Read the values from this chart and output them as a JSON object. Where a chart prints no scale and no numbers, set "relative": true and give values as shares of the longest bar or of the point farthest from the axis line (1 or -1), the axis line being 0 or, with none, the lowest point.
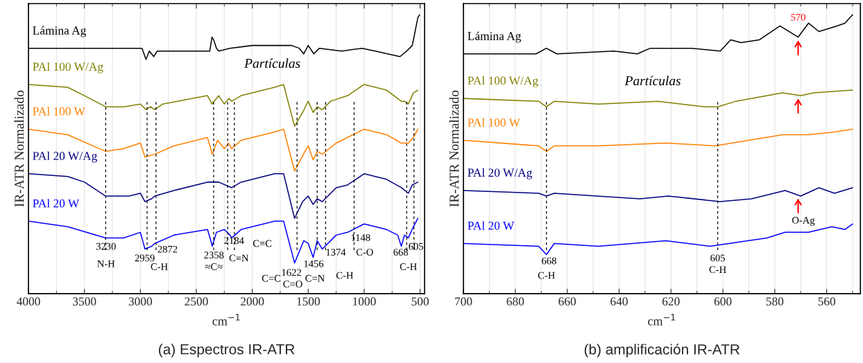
{
  "chart_data": [
    {
      "type": "line",
      "relative": true,
      "title": "(a) Espectros IR-ATR",
      "xlabel": "cm$^{−1}$",
      "ylabel": "IR-ATR Normalizado",
      "xlim": [
        4000,
        460
      ],
      "xticks": [
        4000,
        3500,
        3000,
        2500,
        2000,
        1500,
        1000,
        500
      ],
      "grid": "x",
      "series": [
        {
          "name": "Lámina Ag",
          "color": "#000000",
          "x": [
            4000,
            3700,
            3400,
            3000,
            2985,
            2950,
            2920,
            2880,
            2850,
            2500,
            2380,
            2360,
            2345,
            2320,
            2300,
            2200,
            2000,
            1800,
            1650,
            1580,
            1540,
            1500,
            1450,
            1400,
            1200,
            1020,
            900,
            680,
            620,
            570,
            550,
            530,
            520,
            505
          ],
          "values": [
            0.88,
            0.88,
            0.88,
            0.88,
            0.88,
            0.84,
            0.87,
            0.85,
            0.87,
            0.87,
            0.87,
            0.92,
            0.91,
            0.88,
            0.87,
            0.88,
            0.89,
            0.89,
            0.89,
            0.88,
            0.86,
            0.89,
            0.86,
            0.88,
            0.87,
            0.88,
            0.87,
            0.85,
            0.87,
            0.89,
            0.93,
            0.97,
            0.99,
            1.0
          ]
        },
        {
          "name": "PAl 100 W/Ag",
          "color": "#808000",
          "x": [
            4000,
            3650,
            3500,
            3310,
            3150,
            3000,
            2950,
            2910,
            2872,
            2800,
            2400,
            2360,
            2300,
            2250,
            2210,
            2184,
            2100,
            1800,
            1720,
            1622,
            1550,
            1500,
            1456,
            1420,
            1374,
            1300,
            1148,
            1000,
            800,
            668,
            640,
            605,
            560,
            520
          ],
          "values": [
            0.75,
            0.74,
            0.71,
            0.67,
            0.67,
            0.68,
            0.66,
            0.67,
            0.66,
            0.68,
            0.71,
            0.68,
            0.71,
            0.68,
            0.7,
            0.69,
            0.71,
            0.74,
            0.75,
            0.6,
            0.65,
            0.69,
            0.65,
            0.67,
            0.66,
            0.69,
            0.71,
            0.75,
            0.73,
            0.69,
            0.69,
            0.68,
            0.72,
            0.73
          ]
        },
        {
          "name": "PAl 100 W",
          "color": "#ff8000",
          "x": [
            4000,
            3650,
            3310,
            3150,
            3000,
            2959,
            2872,
            2700,
            2400,
            2358,
            2310,
            2250,
            2210,
            2184,
            2100,
            1800,
            1720,
            1622,
            1530,
            1500,
            1456,
            1420,
            1374,
            1250,
            1000,
            800,
            668,
            605,
            560,
            520
          ],
          "values": [
            0.59,
            0.57,
            0.51,
            0.52,
            0.54,
            0.49,
            0.5,
            0.53,
            0.56,
            0.5,
            0.55,
            0.52,
            0.54,
            0.52,
            0.55,
            0.58,
            0.59,
            0.44,
            0.51,
            0.53,
            0.48,
            0.51,
            0.5,
            0.54,
            0.59,
            0.57,
            0.54,
            0.54,
            0.56,
            0.59
          ]
        },
        {
          "name": "PAl 20 W/Ag",
          "color": "#000080",
          "x": [
            4000,
            3650,
            3500,
            3310,
            3100,
            3000,
            2959,
            2900,
            2872,
            2700,
            2400,
            2300,
            2184,
            2100,
            1800,
            1720,
            1622,
            1550,
            1500,
            1456,
            1420,
            1374,
            1250,
            1148,
            1000,
            800,
            668,
            605,
            570,
            520
          ],
          "values": [
            0.43,
            0.42,
            0.4,
            0.35,
            0.35,
            0.36,
            0.33,
            0.34,
            0.35,
            0.37,
            0.4,
            0.4,
            0.38,
            0.4,
            0.43,
            0.43,
            0.27,
            0.33,
            0.35,
            0.32,
            0.34,
            0.33,
            0.38,
            0.39,
            0.43,
            0.41,
            0.38,
            0.36,
            0.39,
            0.4
          ]
        },
        {
          "name": "PAl 20 W",
          "color": "#0000ff",
          "x": [
            4000,
            3650,
            3310,
            3150,
            3000,
            2959,
            2900,
            2872,
            2700,
            2400,
            2370,
            2358,
            2320,
            2250,
            2200,
            2184,
            2100,
            1800,
            1720,
            1622,
            1540,
            1500,
            1456,
            1420,
            1374,
            1250,
            1148,
            1000,
            800,
            700,
            668,
            640,
            605,
            560,
            520
          ],
          "values": [
            0.26,
            0.24,
            0.2,
            0.2,
            0.22,
            0.16,
            0.17,
            0.18,
            0.21,
            0.23,
            0.19,
            0.17,
            0.22,
            0.23,
            0.21,
            0.2,
            0.23,
            0.26,
            0.26,
            0.11,
            0.19,
            0.18,
            0.13,
            0.19,
            0.16,
            0.21,
            0.22,
            0.25,
            0.23,
            0.21,
            0.17,
            0.21,
            0.2,
            0.24,
            0.27
          ]
        }
      ],
      "ref_lines": [
        {
          "axis": "x",
          "value": 3310,
          "color": "#000000",
          "line_style": "dashed"
        },
        {
          "axis": "x",
          "value": 2940,
          "color": "#000000",
          "line_style": "dashed"
        },
        {
          "axis": "x",
          "value": 2860,
          "color": "#000000",
          "line_style": "dashed"
        },
        {
          "axis": "x",
          "value": 2345,
          "color": "#000000",
          "line_style": "dashed"
        },
        {
          "axis": "x",
          "value": 2220,
          "color": "#000000",
          "line_style": "dashed"
        },
        {
          "axis": "x",
          "value": 2160,
          "color": "#000000",
          "line_style": "dashed"
        },
        {
          "axis": "x",
          "value": 1600,
          "color": "#000000",
          "line_style": "dashed"
        },
        {
          "axis": "x",
          "value": 1420,
          "color": "#000000",
          "line_style": "dashed"
        },
        {
          "axis": "x",
          "value": 1345,
          "color": "#000000",
          "line_style": "dashed"
        },
        {
          "axis": "x",
          "value": 1090,
          "color": "#000000",
          "line_style": "dashed"
        },
        {
          "axis": "x",
          "value": 620,
          "color": "#000000",
          "line_style": "dashed"
        },
        {
          "axis": "x",
          "value": 555,
          "color": "#000000",
          "line_style": "dashed"
        }
      ],
      "annotations": [
        "Partículas",
        "3230",
        "N-H",
        "2959",
        "2872",
        "C-H",
        "2358",
        "≈C≈",
        "2184",
        "C≡N",
        "C≡C",
        "1622",
        "C=O",
        "C=C",
        "1456",
        "C=N",
        "1374",
        "C-H",
        "1148",
        "C-O",
        "668",
        "605",
        "C-H"
      ]
    },
    {
      "type": "line",
      "relative": true,
      "title": "(b) amplificación IR-ATR",
      "xlabel": "cm$^{−1}$",
      "ylabel": "IR-ATR Normalizado",
      "xlim": [
        700,
        547
      ],
      "xticks": [
        700,
        680,
        660,
        640,
        620,
        600,
        580,
        560
      ],
      "grid": "x",
      "series": [
        {
          "name": "Lámina Ag",
          "color": "#000000",
          "x": [
            700,
            690,
            672,
            668,
            664,
            642,
            633,
            628,
            612,
            601,
            597,
            593,
            586,
            578,
            571,
            567,
            563,
            556,
            553,
            550
          ],
          "values": [
            0.86,
            0.86,
            0.86,
            0.88,
            0.86,
            0.87,
            0.86,
            0.88,
            0.88,
            0.87,
            0.91,
            0.9,
            0.91,
            0.96,
            0.92,
            0.97,
            0.94,
            0.96,
            0.97,
            1.0
          ]
        },
        {
          "name": "PAl 100 W/Ag",
          "color": "#808000",
          "x": [
            700,
            671,
            668,
            665,
            648,
            625,
            607,
            602,
            595,
            577,
            570,
            565,
            550
          ],
          "values": [
            0.7,
            0.69,
            0.67,
            0.69,
            0.68,
            0.69,
            0.67,
            0.67,
            0.69,
            0.72,
            0.71,
            0.72,
            0.73
          ]
        },
        {
          "name": "PAl 100 W",
          "color": "#ff8000",
          "x": [
            700,
            671,
            668,
            665,
            648,
            622,
            603,
            577,
            567,
            557,
            550
          ],
          "values": [
            0.55,
            0.53,
            0.51,
            0.53,
            0.53,
            0.54,
            0.53,
            0.57,
            0.57,
            0.58,
            0.59
          ]
        },
        {
          "name": "PAl 20 W/Ag",
          "color": "#000080",
          "x": [
            700,
            671,
            668,
            665,
            632,
            621,
            601,
            589,
            576,
            570,
            563,
            557,
            550
          ],
          "values": [
            0.37,
            0.36,
            0.35,
            0.36,
            0.34,
            0.35,
            0.33,
            0.34,
            0.37,
            0.35,
            0.38,
            0.36,
            0.38
          ]
        },
        {
          "name": "PAl 20 W",
          "color": "#0000ff",
          "x": [
            700,
            671,
            668,
            665,
            648,
            622,
            605,
            583,
            576,
            567,
            558,
            553,
            550
          ],
          "values": [
            0.18,
            0.17,
            0.14,
            0.18,
            0.17,
            0.19,
            0.17,
            0.2,
            0.22,
            0.22,
            0.24,
            0.23,
            0.25
          ]
        }
      ],
      "ref_lines": [
        {
          "axis": "x",
          "value": 668,
          "color": "#000000",
          "line_style": "dashed"
        },
        {
          "axis": "x",
          "value": 602,
          "color": "#000000",
          "line_style": "dashed"
        }
      ],
      "annotations": [
        "570",
        "Partículas",
        "668",
        "C-H",
        "605",
        "C-H",
        "O-Ag"
      ]
    }
  ]
}
